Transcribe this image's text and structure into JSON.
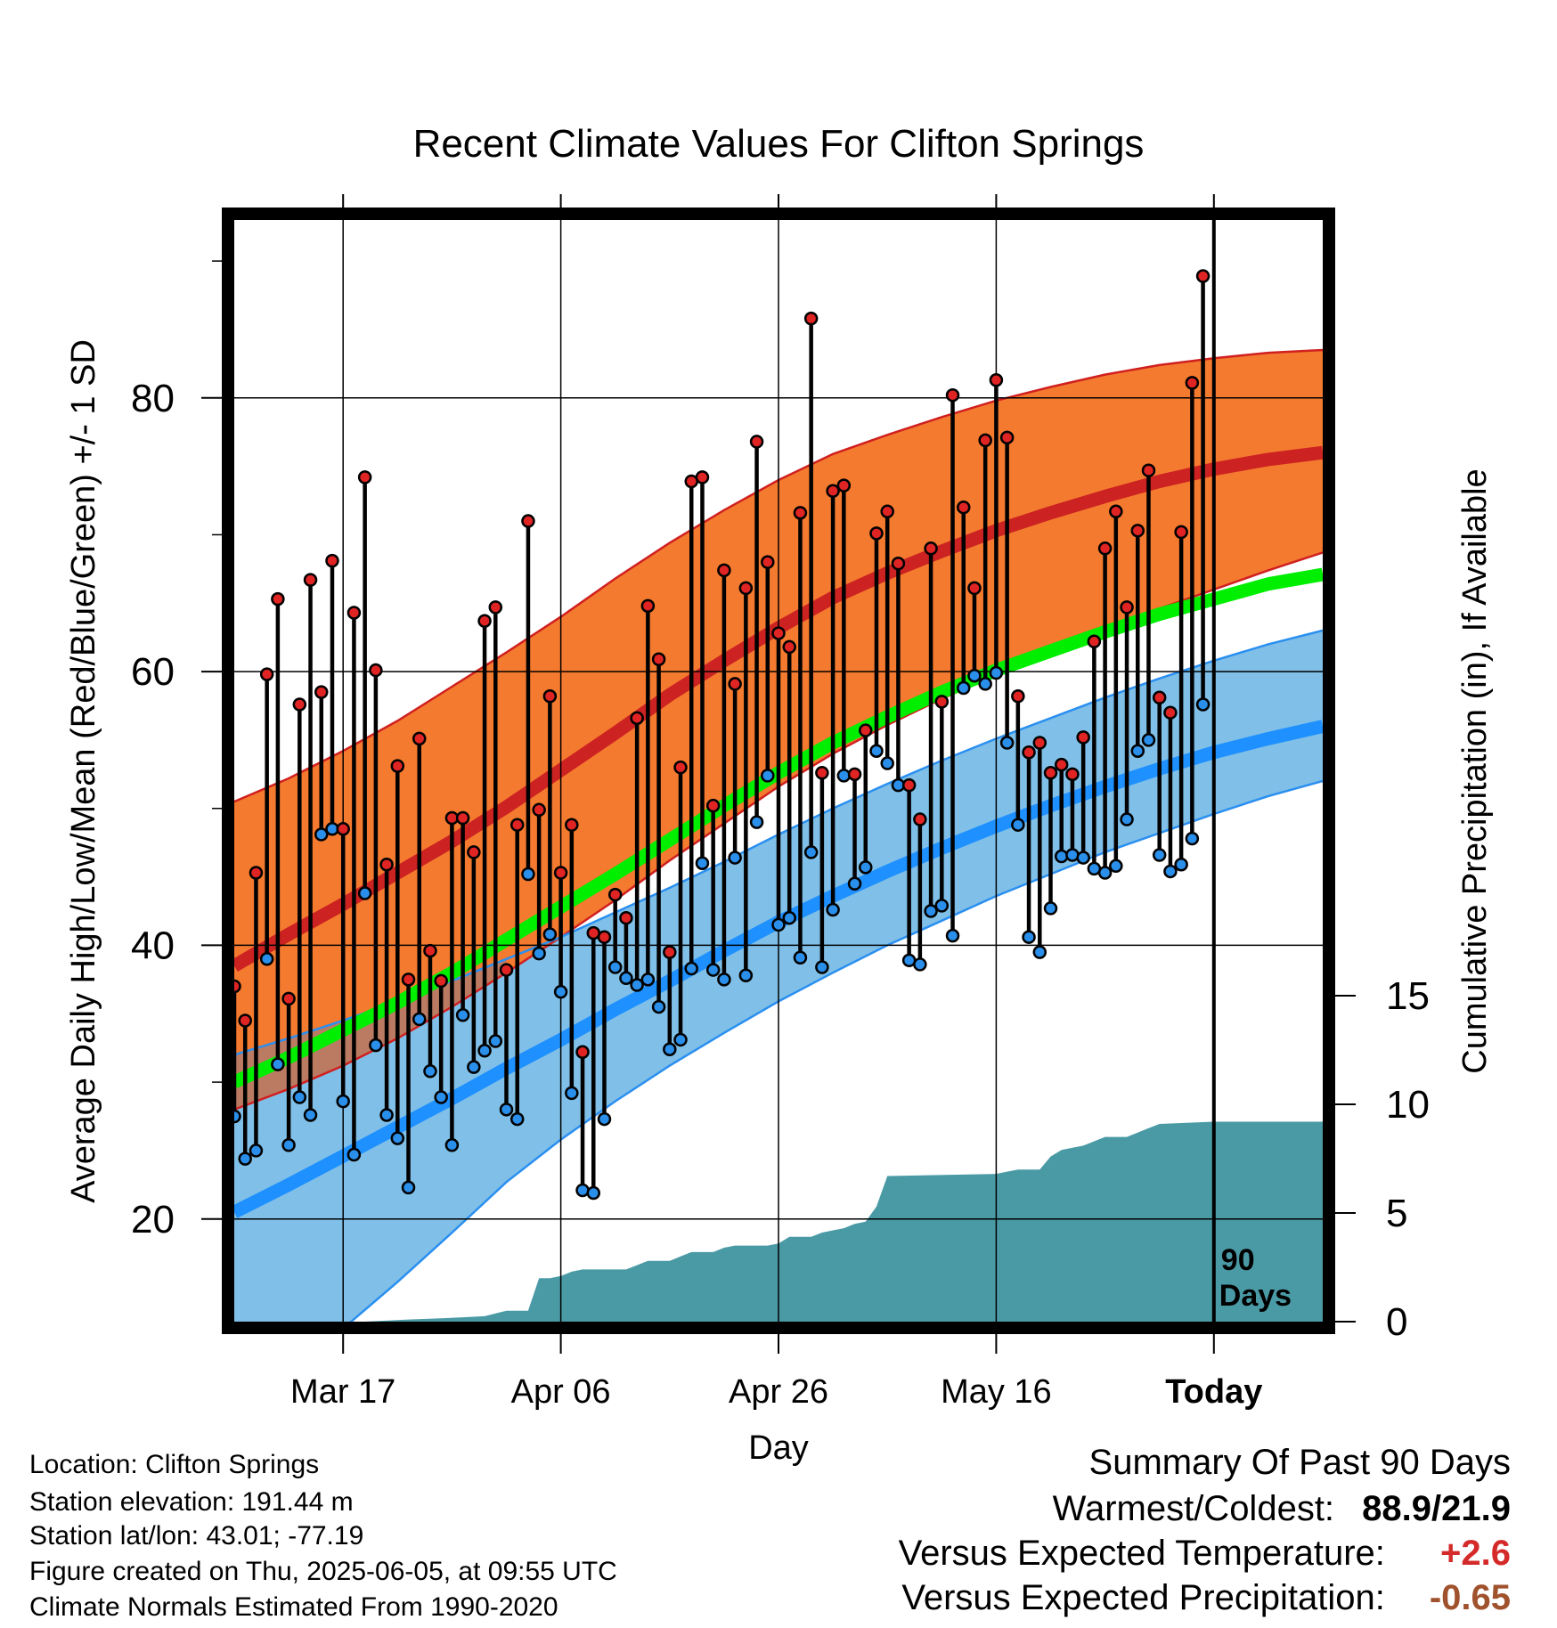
{
  "chart_data": {
    "type": "line",
    "title": "Recent Climate Values For Clifton Springs",
    "xlabel": "Day",
    "ylabel": "Average Daily High/Low/Mean (Red/Blue/Green) +/- 1 SD",
    "y2label": "Cumulative Precipitation (in), If Available",
    "x_range": [
      -10,
      90
    ],
    "ylim": [
      12.5,
      93
    ],
    "y2lim": [
      0,
      18
    ],
    "y_ticks": [
      20,
      40,
      60,
      80
    ],
    "y_minor_ticks": [
      30,
      50,
      70,
      90
    ],
    "y2_ticks": [
      0,
      5,
      10,
      15
    ],
    "x_ticks": [
      {
        "x": 0,
        "label": "Mar 17"
      },
      {
        "x": 20,
        "label": "Apr 06"
      },
      {
        "x": 40,
        "label": "Apr 26"
      },
      {
        "x": 60,
        "label": "May 16"
      },
      {
        "x": 80,
        "label": "Today"
      }
    ],
    "today_marker": {
      "x": 80,
      "label_line1": "90",
      "label_line2": "Days"
    },
    "grid": true,
    "colors": {
      "high_band": "#f47a2f",
      "high_mean": "#cc2222",
      "high_mean_early": "#9a1a1a",
      "high_edge": "#d02020",
      "low_band": "#80c0e8",
      "low_mean": "#1e90ff",
      "low_edge": "#2a8ff0",
      "overlap_band": "#bb7b63",
      "mean_line": "#00ee00",
      "precip": "#4a9aa5",
      "high_dot": "#e02424",
      "low_dot": "#2a8fea",
      "frame": "#000000"
    },
    "normal_high": {
      "mean": {
        "x": [
          -10,
          -5,
          0,
          5,
          10,
          15,
          20,
          25,
          30,
          35,
          40,
          45,
          50,
          55,
          60,
          65,
          70,
          75,
          80,
          85,
          90
        ],
        "y": [
          38.5,
          40.8,
          43,
          45.3,
          47.6,
          50.1,
          52.8,
          55.5,
          58.3,
          60.8,
          63.2,
          65.4,
          67.2,
          68.8,
          70.3,
          71.6,
          72.8,
          73.9,
          74.8,
          75.5,
          76
        ]
      },
      "sd_upper": {
        "x": [
          -10,
          -5,
          0,
          5,
          10,
          15,
          20,
          25,
          30,
          35,
          40,
          45,
          50,
          55,
          60,
          65,
          70,
          75,
          80,
          85,
          90
        ],
        "y": [
          50.5,
          52.2,
          54.2,
          56.4,
          58.9,
          61.4,
          64,
          66.8,
          69.4,
          71.8,
          74,
          75.9,
          77.3,
          78.6,
          79.8,
          80.8,
          81.7,
          82.4,
          82.9,
          83.3,
          83.5
        ]
      },
      "sd_lower": {
        "x": [
          -10,
          -5,
          0,
          5,
          10,
          15,
          20,
          25,
          30,
          35,
          40,
          45,
          50,
          55,
          60,
          65,
          70,
          75,
          80,
          85,
          90
        ],
        "y": [
          28,
          29.5,
          31.2,
          33.2,
          35.5,
          38,
          40.6,
          43.3,
          46.2,
          48.9,
          51.6,
          54,
          56.1,
          58,
          59.8,
          61.5,
          63.1,
          64.6,
          66,
          67.4,
          68.7
        ]
      }
    },
    "normal_low": {
      "mean": {
        "x": [
          -10,
          -5,
          0,
          5,
          10,
          15,
          20,
          25,
          30,
          35,
          40,
          45,
          50,
          55,
          60,
          65,
          70,
          75,
          80,
          85,
          90
        ],
        "y": [
          20.5,
          22.5,
          24.6,
          26.7,
          28.8,
          31,
          33.1,
          35.3,
          37.4,
          39.6,
          41.7,
          43.6,
          45.4,
          47.1,
          48.7,
          50.2,
          51.6,
          52.9,
          54.1,
          55.1,
          56
        ]
      },
      "sd_upper": {
        "x": [
          -10,
          -5,
          0,
          5,
          10,
          15,
          20,
          25,
          30,
          35,
          40,
          45,
          50,
          55,
          60,
          65,
          70,
          75,
          80,
          85,
          90
        ],
        "y": [
          32,
          33.2,
          34.5,
          35.9,
          37.4,
          39,
          40.6,
          42.4,
          44.2,
          46.1,
          48.1,
          50,
          51.8,
          53.5,
          55.1,
          56.6,
          58.1,
          59.5,
          60.8,
          62,
          63
        ]
      },
      "sd_lower": {
        "x": [
          -10,
          -5,
          0,
          5,
          10,
          15,
          20,
          25,
          30,
          35,
          40,
          45,
          50,
          55,
          60,
          65,
          70,
          75,
          80,
          85,
          90
        ],
        "y": [
          6.3,
          9,
          12,
          15.4,
          19,
          22.7,
          25.8,
          28.6,
          31.2,
          33.6,
          35.9,
          38,
          40,
          41.8,
          43.6,
          45.2,
          46.8,
          48.2,
          49.6,
          50.9,
          52
        ]
      }
    },
    "normal_mean": {
      "x": [
        -10,
        -5,
        0,
        5,
        10,
        15,
        20,
        25,
        30,
        35,
        40,
        45,
        50,
        55,
        60,
        65,
        70,
        75,
        80,
        85,
        90
      ],
      "y": [
        30,
        31.8,
        33.8,
        35.8,
        38,
        40.4,
        42.8,
        45.2,
        47.7,
        50.2,
        52.6,
        54.8,
        56.7,
        58.5,
        60.1,
        61.5,
        62.9,
        64.2,
        65.3,
        66.4,
        67.1
      ]
    },
    "daily": {
      "day": [
        -10,
        -9,
        -8,
        -7,
        -6,
        -5,
        -4,
        -3,
        -2,
        -1,
        0,
        1,
        2,
        3,
        4,
        5,
        6,
        7,
        8,
        9,
        10,
        11,
        12,
        13,
        14,
        15,
        16,
        17,
        18,
        19,
        20,
        21,
        22,
        23,
        24,
        25,
        26,
        27,
        28,
        29,
        30,
        31,
        32,
        33,
        34,
        35,
        36,
        37,
        38,
        39,
        40,
        41,
        42,
        43,
        44,
        45,
        46,
        47,
        48,
        49,
        50,
        51,
        52,
        53,
        54,
        55,
        56,
        57,
        58,
        59,
        60,
        61,
        62,
        63,
        64,
        65,
        66,
        67,
        68,
        69,
        70,
        71,
        72,
        73,
        74,
        75,
        76,
        77,
        78,
        79
      ],
      "high": [
        37,
        34.5,
        45.3,
        59.8,
        65.3,
        36.1,
        57.6,
        66.7,
        58.5,
        68.1,
        48.5,
        64.3,
        74.2,
        60.1,
        45.9,
        53.1,
        37.5,
        55.1,
        39.6,
        37.4,
        49.3,
        49.3,
        46.8,
        63.7,
        64.7,
        38.2,
        48.8,
        71,
        49.9,
        58.2,
        45.3,
        48.8,
        32.2,
        40.9,
        40.6,
        43.7,
        42,
        56.6,
        64.8,
        60.9,
        39.5,
        53,
        73.9,
        74.2,
        50.2,
        67.4,
        59.1,
        66.1,
        76.8,
        68,
        62.8,
        61.8,
        71.6,
        85.8,
        52.6,
        73.2,
        73.6,
        52.5,
        55.7,
        70.1,
        71.7,
        67.9,
        51.7,
        49.2,
        69,
        57.8,
        80.2,
        72,
        66.1,
        76.9,
        81.3,
        77.1,
        58.2,
        54.1,
        54.8,
        52.6,
        53.2,
        52.5,
        55.2,
        62.2,
        69,
        71.7,
        64.7,
        70.3,
        74.7,
        58.1,
        57,
        70.2,
        81.1,
        88.9
      ],
      "low": [
        27.5,
        24.4,
        25,
        39,
        31.3,
        25.4,
        28.9,
        27.6,
        48.1,
        48.5,
        28.6,
        24.7,
        43.8,
        32.7,
        27.6,
        25.9,
        22.3,
        34.6,
        30.8,
        28.9,
        25.4,
        34.9,
        31.1,
        32.3,
        33,
        28,
        27.3,
        45.2,
        39.4,
        40.8,
        36.6,
        29.2,
        22.1,
        21.9,
        27.3,
        38.4,
        37.6,
        37.1,
        37.5,
        35.5,
        32.4,
        33.1,
        38.3,
        46,
        38.2,
        37.5,
        46.4,
        37.8,
        49,
        52.4,
        41.5,
        42,
        39.1,
        46.8,
        38.4,
        42.6,
        52.4,
        44.5,
        45.7,
        54.2,
        53.3,
        51.7,
        38.9,
        38.6,
        42.5,
        42.9,
        40.7,
        58.8,
        59.7,
        59.1,
        59.9,
        54.8,
        48.8,
        40.6,
        39.5,
        42.7,
        46.5,
        46.6,
        46.4,
        45.6,
        45.3,
        45.8,
        49.2,
        54.2,
        55,
        46.6,
        45.4,
        45.9,
        47.8,
        57.6
      ]
    },
    "precip": {
      "x": [
        -10,
        2,
        6,
        9,
        11,
        13,
        15,
        16,
        17,
        18,
        19,
        20,
        21,
        22,
        23,
        24,
        25,
        26,
        27,
        28,
        29,
        30,
        31,
        32,
        33,
        34,
        35,
        36,
        37,
        38,
        39,
        40,
        41,
        42,
        43,
        44,
        45,
        46,
        47,
        48,
        49,
        50,
        60,
        61,
        62,
        63,
        64,
        65,
        66,
        67,
        68,
        69,
        70,
        71,
        72,
        73,
        74,
        75,
        80,
        90
      ],
      "y": [
        0,
        0,
        0.1,
        0.15,
        0.2,
        0.25,
        0.5,
        0.5,
        0.5,
        2,
        2,
        2.1,
        2.3,
        2.4,
        2.4,
        2.4,
        2.4,
        2.4,
        2.6,
        2.8,
        2.8,
        2.8,
        3,
        3.2,
        3.2,
        3.2,
        3.4,
        3.5,
        3.5,
        3.5,
        3.5,
        3.6,
        3.9,
        3.9,
        3.9,
        4.1,
        4.2,
        4.3,
        4.5,
        4.6,
        5.3,
        6.7,
        6.8,
        6.9,
        7,
        7,
        7,
        7.6,
        7.9,
        8,
        8.1,
        8.3,
        8.5,
        8.5,
        8.5,
        8.7,
        8.9,
        9.1,
        9.2,
        9.2
      ]
    }
  },
  "footer": {
    "location": "Location: Clifton Springs",
    "elevation": "Station elevation: 191.44 m",
    "latlon": "Station lat/lon: 43.01; -77.19",
    "created": "Figure created on Thu, 2025-06-05, at 09:55 UTC",
    "normals": "Climate Normals Estimated From 1990-2020"
  },
  "summary": {
    "heading": "Summary Of Past 90 Days",
    "warmest_coldest_label": "Warmest/Coldest:",
    "warmest_coldest_value": "88.9/21.9",
    "temp_label": "Versus Expected Temperature:",
    "temp_value": "+2.6",
    "temp_color": "#d42a2a",
    "precip_label": "Versus Expected Precipitation:",
    "precip_value": "-0.65",
    "precip_color": "#a0522d"
  }
}
